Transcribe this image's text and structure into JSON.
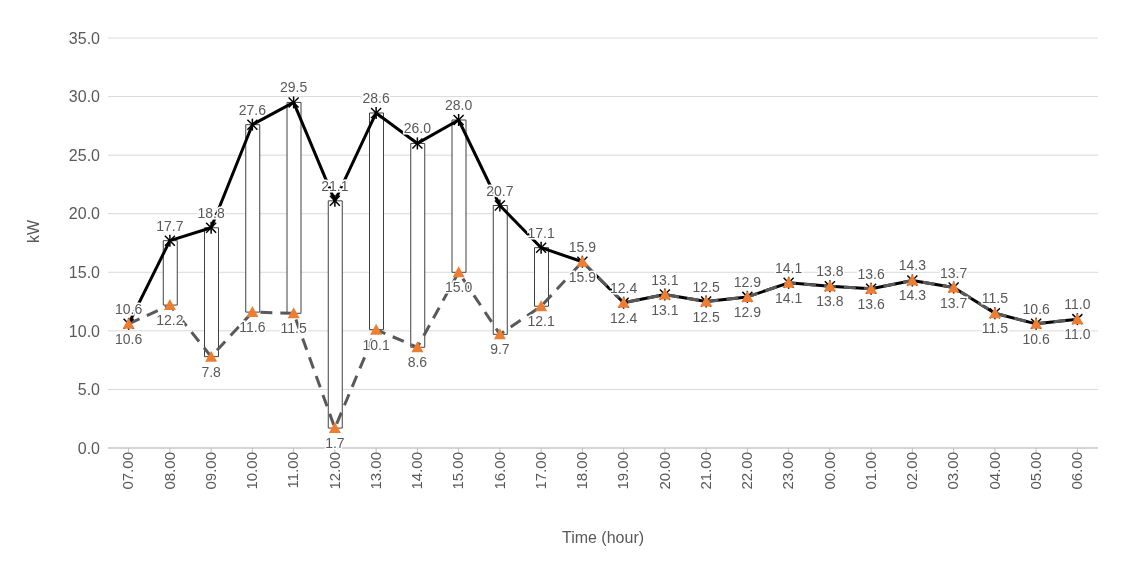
{
  "chart_data": {
    "type": "line",
    "xlabel": "Time (hour)",
    "ylabel": "kW",
    "categories": [
      "07.00",
      "08.00",
      "09.00",
      "10.00",
      "11.00",
      "12.00",
      "13.00",
      "14.00",
      "15.00",
      "16.00",
      "17.00",
      "18.00",
      "19.00",
      "20.00",
      "21.00",
      "22.00",
      "23.00",
      "00.00",
      "01.00",
      "02.00",
      "03.00",
      "04.00",
      "05.00",
      "06.00"
    ],
    "ylim": [
      0,
      35
    ],
    "yticks": [
      {
        "value": 0,
        "label": "0.0"
      },
      {
        "value": 5,
        "label": "5.0"
      },
      {
        "value": 10,
        "label": "10.0"
      },
      {
        "value": 15,
        "label": "15.0"
      },
      {
        "value": 20,
        "label": "20.0"
      },
      {
        "value": 25,
        "label": "25.0"
      },
      {
        "value": 30,
        "label": "30.0"
      },
      {
        "value": 35,
        "label": "35.0"
      }
    ],
    "grid": "y",
    "legend": false,
    "series": [
      {
        "type": "bar",
        "color": "#ffffff",
        "base": [
          null,
          12.2,
          7.8,
          11.6,
          11.5,
          1.7,
          10.1,
          8.6,
          15.0,
          9.7,
          12.1,
          null,
          null,
          null,
          null,
          null,
          null,
          null,
          null,
          null,
          null,
          null,
          null,
          null
        ],
        "values": [
          null,
          5.5,
          11.0,
          16.0,
          18.0,
          19.4,
          18.5,
          17.4,
          13.0,
          11.0,
          5.0,
          null,
          null,
          null,
          null,
          null,
          null,
          null,
          null,
          null,
          null,
          null,
          null,
          null
        ]
      },
      {
        "color": "#000000",
        "marker": "cross",
        "line_style": "solid",
        "values": [
          10.6,
          17.7,
          18.8,
          27.6,
          29.5,
          21.1,
          28.6,
          26.0,
          28.0,
          20.7,
          17.1,
          15.9,
          12.4,
          13.1,
          12.5,
          12.9,
          14.1,
          13.8,
          13.6,
          14.3,
          13.7,
          11.5,
          10.6,
          11.0
        ],
        "value_labels": [
          "10.6",
          "17.7",
          "18.8",
          "27.6",
          "29.5",
          "21.1",
          "28.6",
          "26.0",
          "28.0",
          "20.7",
          "17.1",
          "15.9",
          "12.4",
          "13.1",
          "12.5",
          "12.9",
          "14.1",
          "13.8",
          "13.6",
          "14.3",
          "13.7",
          "11.5",
          "10.6",
          "11.0"
        ]
      },
      {
        "color": "#595959",
        "marker": "triangle",
        "line_style": "dashed",
        "colors": [
          "#ed7d31",
          "#ed7d31",
          "#ed7d31",
          "#ed7d31",
          "#ed7d31",
          "#ed7d31",
          "#ed7d31",
          "#ed7d31",
          "#ed7d31",
          "#ed7d31",
          "#ed7d31",
          "#ed7d31",
          "#ed7d31",
          "#ed7d31",
          "#ed7d31",
          "#ed7d31",
          "#ed7d31",
          "#ed7d31",
          "#ed7d31",
          "#ed7d31",
          "#ed7d31",
          "#ed7d31",
          "#ed7d31",
          "#ed7d31"
        ],
        "values": [
          10.6,
          12.2,
          7.8,
          11.6,
          11.5,
          1.7,
          10.1,
          8.6,
          15.0,
          9.7,
          12.1,
          15.9,
          12.4,
          13.1,
          12.5,
          12.9,
          14.1,
          13.8,
          13.6,
          14.3,
          13.7,
          11.5,
          10.6,
          11.0
        ],
        "value_labels": [
          "10.6",
          "12.2",
          "7.8",
          "11.6",
          "11.5",
          "1.7",
          "10.1",
          "8.6",
          "15.0",
          "9.7",
          "12.1",
          "15.9",
          "12.4",
          "13.1",
          "12.5",
          "12.9",
          "14.1",
          "13.8",
          "13.6",
          "14.3",
          "13.7",
          "11.5",
          "10.6",
          "11.0"
        ]
      }
    ]
  }
}
